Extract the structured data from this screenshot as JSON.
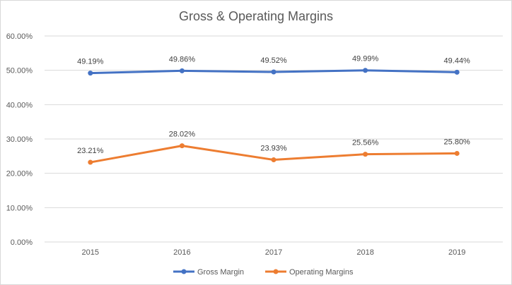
{
  "chart_data": {
    "type": "line",
    "title": "Gross & Operating Margins",
    "xlabel": "",
    "ylabel": "",
    "categories": [
      "2015",
      "2016",
      "2017",
      "2018",
      "2019"
    ],
    "ylim": [
      0,
      60
    ],
    "yticks": [
      0,
      10,
      20,
      30,
      40,
      50,
      60
    ],
    "ytick_labels": [
      "0.00%",
      "10.00%",
      "20.00%",
      "30.00%",
      "40.00%",
      "50.00%",
      "60.00%"
    ],
    "grid": true,
    "legend_position": "bottom",
    "series": [
      {
        "name": "Gross Margin",
        "color": "#4472C4",
        "values": [
          49.19,
          49.86,
          49.52,
          49.99,
          49.44
        ],
        "labels": [
          "49.19%",
          "49.86%",
          "49.52%",
          "49.99%",
          "49.44%"
        ]
      },
      {
        "name": "Operating Margins",
        "color": "#ED7D31",
        "values": [
          23.21,
          28.02,
          23.93,
          25.56,
          25.8
        ],
        "labels": [
          "23.21%",
          "28.02%",
          "23.93%",
          "25.56%",
          "25.80%"
        ]
      }
    ]
  }
}
